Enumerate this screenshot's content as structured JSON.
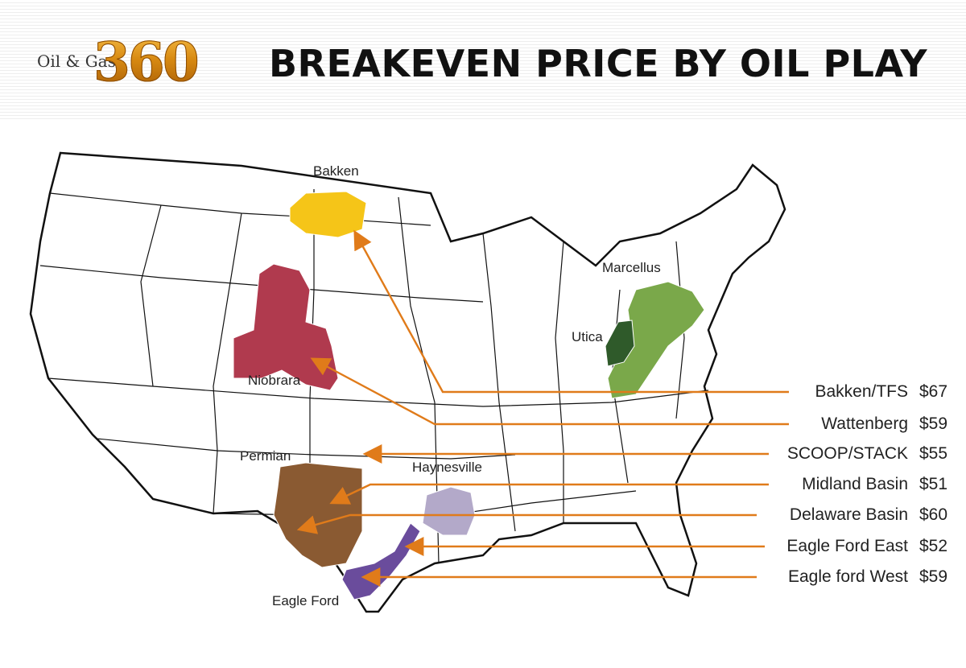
{
  "header": {
    "logo_small": "Oil & Gas",
    "logo_big": "360",
    "title": "BREAKEVEN PRICE BY OIL PLAY"
  },
  "regions": {
    "bakken": "Bakken",
    "niobrara": "Niobrara",
    "permian": "Permian",
    "haynesville": "Haynesville",
    "eagle_ford": "Eagle Ford",
    "marcellus": "Marcellus",
    "utica": "Utica"
  },
  "colors": {
    "bakken": "#f5c518",
    "niobrara": "#b03a4e",
    "permian": "#8a5a32",
    "haynesville": "#b3a9c9",
    "eagle_ford": "#6a4c9c",
    "marcellus": "#7aa84a",
    "utica": "#2f5a2a",
    "arrow": "#e07b1a"
  },
  "plays": [
    {
      "name": "Bakken/TFS",
      "price": "$67"
    },
    {
      "name": "Wattenberg",
      "price": "$59"
    },
    {
      "name": "SCOOP/STACK",
      "price": "$55"
    },
    {
      "name": "Midland Basin",
      "price": "$51"
    },
    {
      "name": "Delaware Basin",
      "price": "$60"
    },
    {
      "name": "Eagle Ford East",
      "price": "$52"
    },
    {
      "name": "Eagle ford West",
      "price": "$59"
    }
  ]
}
